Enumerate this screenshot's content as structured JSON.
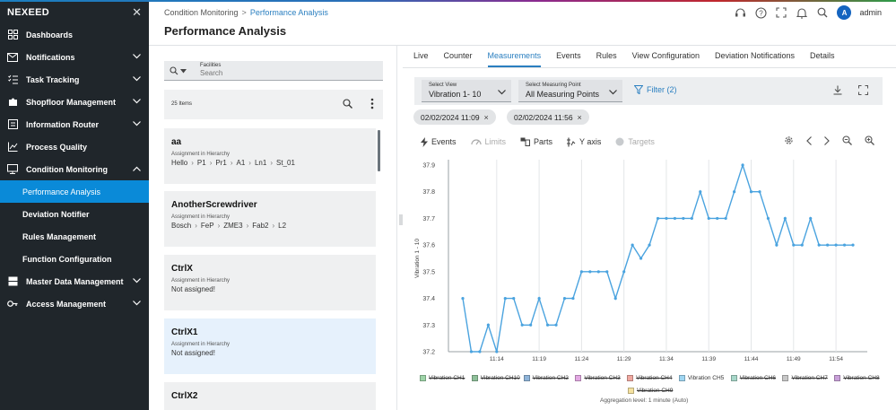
{
  "app": {
    "brand": "NEXEED"
  },
  "sidebar": {
    "items": [
      {
        "label": "Dashboards",
        "icon": "grid-icon",
        "chevron": false
      },
      {
        "label": "Notifications",
        "icon": "envelope-icon",
        "chevron": "down"
      },
      {
        "label": "Task Tracking",
        "icon": "checklist-icon",
        "chevron": "down"
      },
      {
        "label": "Shopfloor Management",
        "icon": "puzzle-icon",
        "chevron": "down"
      },
      {
        "label": "Information Router",
        "icon": "router-icon",
        "chevron": "down"
      },
      {
        "label": "Process Quality",
        "icon": "trend-chart-icon",
        "chevron": false
      },
      {
        "label": "Condition Monitoring",
        "icon": "monitor-icon",
        "chevron": "up"
      }
    ],
    "sub_items": [
      {
        "label": "Performance Analysis",
        "active": true
      },
      {
        "label": "Deviation Notifier",
        "active": false
      },
      {
        "label": "Rules Management",
        "active": false
      },
      {
        "label": "Function Configuration",
        "active": false
      }
    ],
    "bottom_items": [
      {
        "label": "Master Data Management",
        "icon": "database-icon",
        "chevron": "down"
      },
      {
        "label": "Access Management",
        "icon": "key-icon",
        "chevron": "down"
      }
    ]
  },
  "header": {
    "breadcrumb": [
      "Condition Monitoring",
      "Performance Analysis"
    ],
    "title": "Performance Analysis",
    "user_initial": "A",
    "user_name": "admin"
  },
  "left_panel": {
    "facility_label": "Facilities",
    "facility_placeholder": "Search",
    "items_count": "25 Items",
    "assignment_label": "Assignment in Hierarchy",
    "cards": [
      {
        "title": "aa",
        "path": [
          "Hello",
          "P1",
          "Pr1",
          "A1",
          "Ln1",
          "St_01"
        ],
        "text": "",
        "selected": false
      },
      {
        "title": "AnotherScrewdriver",
        "path": [
          "Bosch",
          "FeP",
          "ZME3",
          "Fab2",
          "L2"
        ],
        "text": "",
        "selected": false
      },
      {
        "title": "CtrlX",
        "path": [],
        "text": "Not assigned!",
        "selected": false
      },
      {
        "title": "CtrlX1",
        "path": [],
        "text": "Not assigned!",
        "selected": true
      },
      {
        "title": "CtrlX2",
        "path": [],
        "text": "",
        "selected": false
      }
    ]
  },
  "tabs": [
    {
      "label": "Live",
      "active": false
    },
    {
      "label": "Counter",
      "active": false
    },
    {
      "label": "Measurements",
      "active": true
    },
    {
      "label": "Events",
      "active": false
    },
    {
      "label": "Rules",
      "active": false
    },
    {
      "label": "View Configuration",
      "active": false
    },
    {
      "label": "Deviation Notifications",
      "active": false
    },
    {
      "label": "Details",
      "active": false
    }
  ],
  "filters": {
    "view_label": "Select View",
    "view_value": "Vibration 1- 10",
    "mp_label": "Select Measuring Point",
    "mp_value": "All Measuring Points",
    "filter_label": "Filter (2)",
    "chips": [
      "02/02/2024 11:09",
      "02/02/2024 11:56"
    ]
  },
  "chart_toolbar": {
    "events": "Events",
    "limits": "Limits",
    "parts": "Parts",
    "yaxis": "Y axis",
    "targets": "Targets"
  },
  "chart_data": {
    "type": "line",
    "ylabel": "Vibration 1 - 10",
    "xlabel": "",
    "ylim": [
      37.2,
      37.9
    ],
    "yticks": [
      "37.9",
      "37.8",
      "37.7",
      "37.6",
      "37.5",
      "37.4",
      "37.3",
      "37.2"
    ],
    "xticks": [
      {
        "label": "11:14",
        "minute": 14
      },
      {
        "label": "11:19",
        "minute": 19
      },
      {
        "label": "11:24",
        "minute": 24
      },
      {
        "label": "11:29",
        "minute": 29
      },
      {
        "label": "11:34",
        "minute": 34
      },
      {
        "label": "11:39",
        "minute": 39
      },
      {
        "label": "11:44",
        "minute": 44
      },
      {
        "label": "11:49",
        "minute": 49
      },
      {
        "label": "11:54",
        "minute": 54
      }
    ],
    "x_minutes": [
      10,
      11,
      12,
      13,
      14,
      15,
      16,
      17,
      18,
      19,
      20,
      21,
      22,
      23,
      24,
      25,
      26,
      27,
      28,
      29,
      30,
      31,
      32,
      33,
      34,
      35,
      36,
      37,
      38,
      39,
      40,
      41,
      42,
      43,
      44,
      45,
      46,
      47,
      48,
      49,
      50,
      51,
      52,
      53,
      54,
      55,
      56
    ],
    "series": [
      {
        "name": "Vibration CH5",
        "color": "#4aa3df",
        "values": [
          37.4,
          37.2,
          37.2,
          37.3,
          37.2,
          37.4,
          37.4,
          37.3,
          37.3,
          37.4,
          37.3,
          37.3,
          37.4,
          37.4,
          37.5,
          37.5,
          37.5,
          37.5,
          37.4,
          37.5,
          37.6,
          37.55,
          37.6,
          37.7,
          37.7,
          37.7,
          37.7,
          37.7,
          37.8,
          37.7,
          37.7,
          37.7,
          37.8,
          37.9,
          37.8,
          37.8,
          37.7,
          37.6,
          37.7,
          37.6,
          37.6,
          37.7,
          37.6,
          37.6,
          37.6,
          37.6,
          37.6
        ]
      }
    ],
    "legend": [
      {
        "name": "Vibration CH1",
        "color": "#9ed4a8",
        "active": false
      },
      {
        "name": "Vibration CH10",
        "color": "#8fc09a",
        "active": false
      },
      {
        "name": "Vibration CH2",
        "color": "#8fb4d9",
        "active": false
      },
      {
        "name": "Vibration CH3",
        "color": "#e3a8e3",
        "active": false
      },
      {
        "name": "Vibration CH4",
        "color": "#f0a8a0",
        "active": false
      },
      {
        "name": "Vibration CH5",
        "color": "#9fd6f2",
        "active": true
      },
      {
        "name": "Vibration CH6",
        "color": "#a7d7c9",
        "active": false
      },
      {
        "name": "Vibration CH7",
        "color": "#c8c8c8",
        "active": false
      },
      {
        "name": "Vibration CH8",
        "color": "#c9a0d9",
        "active": false
      },
      {
        "name": "Vibration CH9",
        "color": "#f5e2a0",
        "active": false
      }
    ],
    "aggregation": "Aggregation level: 1 minute (Auto)"
  }
}
